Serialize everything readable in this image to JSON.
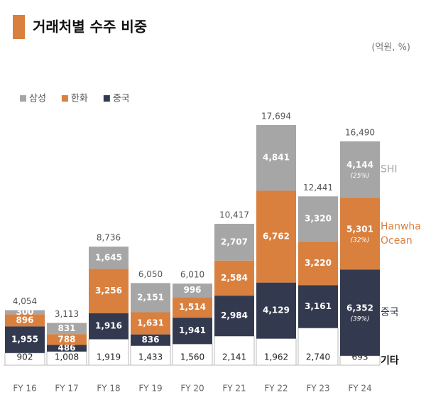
{
  "chart_data": {
    "type": "stacked-bar",
    "title": "거래처별 수주 비중",
    "unit": "(억원, %)",
    "categories": [
      "FY 16",
      "FY 17",
      "FY 18",
      "FY 19",
      "FY 20",
      "FY 21",
      "FY 22",
      "FY 23",
      "FY 24"
    ],
    "totals": [
      4054,
      3113,
      8736,
      6050,
      6010,
      10417,
      17694,
      12441,
      16490
    ],
    "total_labels": [
      "4,054",
      "3,113",
      "8,736",
      "6,050",
      "6,010",
      "10,417",
      "17,694",
      "12,441",
      "16,490"
    ],
    "series": [
      {
        "end_label": [
          "기타"
        ],
        "color": "#ffffff",
        "text_color": "#222222",
        "values": [
          902,
          1008,
          1919,
          1433,
          1560,
          2141,
          1962,
          2740,
          693
        ],
        "value_labels": [
          "902",
          "1,008",
          "1,919",
          "1,433",
          "1,560",
          "2,141",
          "1,962",
          "2,740",
          "693"
        ]
      },
      {
        "name": "중국",
        "end_label": [
          "중국"
        ],
        "color": "#333a4f",
        "text_color": "#ffffff",
        "values": [
          1955,
          486,
          1916,
          836,
          1941,
          2984,
          4129,
          3161,
          6352
        ],
        "value_labels": [
          "1,955",
          "486",
          "1,916",
          "836",
          "1,941",
          "2,984",
          "4,129",
          "3,161",
          "6,352"
        ],
        "share": 39,
        "share_label": "(39%)"
      },
      {
        "name": "한화",
        "end_label": [
          "Hanwha",
          "Ocean"
        ],
        "color": "#d9803f",
        "text_color": "#ffffff",
        "values": [
          896,
          788,
          3256,
          1631,
          1514,
          2584,
          6762,
          3220,
          5301
        ],
        "value_labels": [
          "896",
          "788",
          "3,256",
          "1,631",
          "1,514",
          "2,584",
          "6,762",
          "3,220",
          "5,301"
        ],
        "share": 32,
        "share_label": "(32%)"
      },
      {
        "name": "삼성",
        "end_label": [
          "SHI"
        ],
        "color": "#a6a6a6",
        "text_color": "#ffffff",
        "values": [
          300,
          831,
          1645,
          2151,
          996,
          2707,
          4841,
          3320,
          4144
        ],
        "value_labels": [
          "300",
          "831",
          "1,645",
          "2,151",
          "996",
          "2,707",
          "4,841",
          "3,320",
          "4,144"
        ],
        "share": 25,
        "share_label": "(25%)"
      }
    ]
  }
}
